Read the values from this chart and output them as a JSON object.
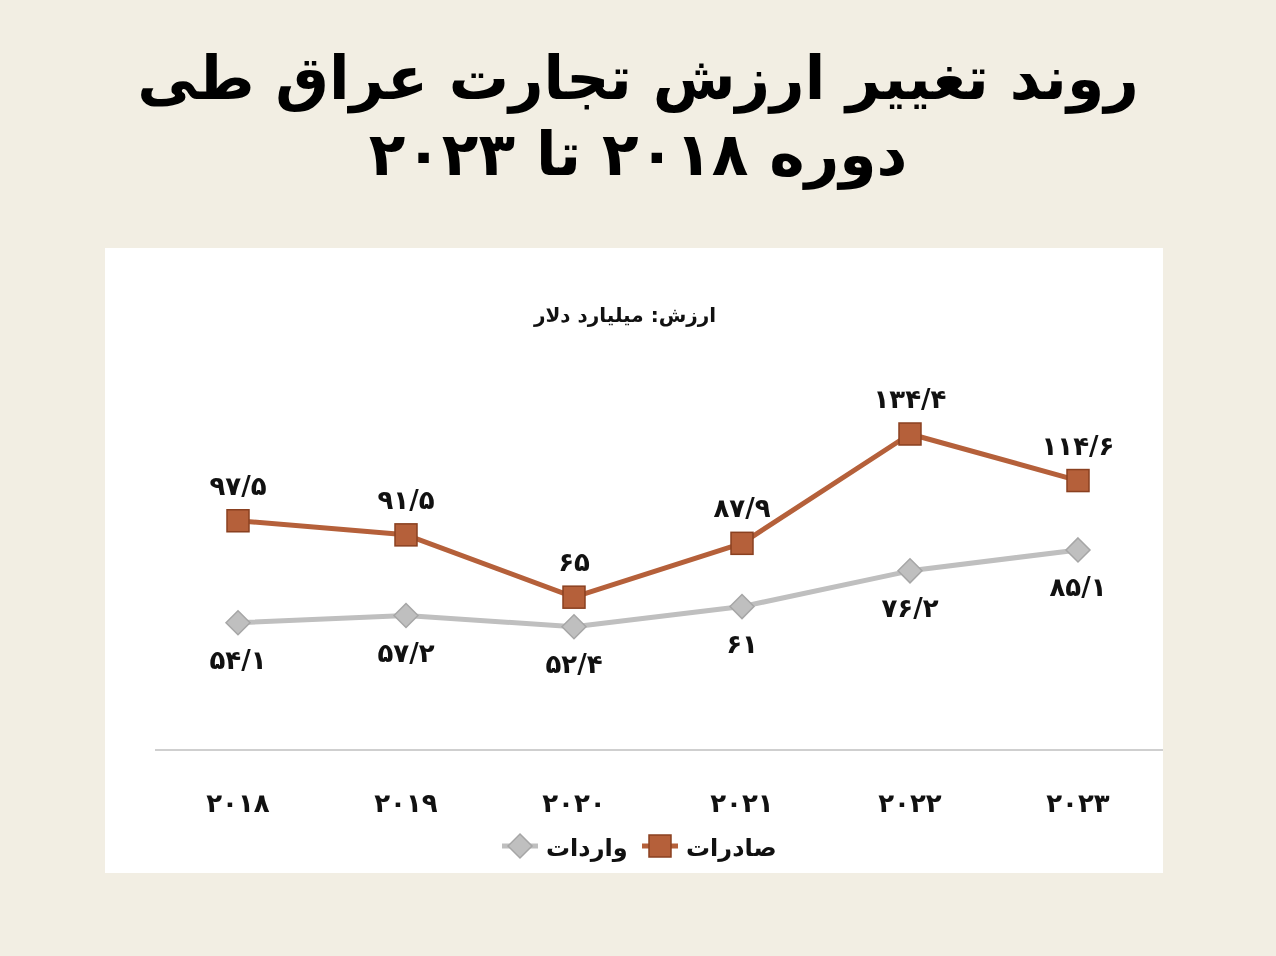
{
  "chart_data": {
    "type": "line",
    "title": "روند تغییر ارزش تجارت عراق طی دوره ۲۰۱۸ تا ۲۰۲۳",
    "subtitle": "ارزش: میلیارد دلار",
    "categories": [
      "۲۰۱۸",
      "۲۰۱۹",
      "۲۰۲۰",
      "۲۰۲۱",
      "۲۰۲۲",
      "۲۰۲۳"
    ],
    "legend": "bottom",
    "series": [
      {
        "name": "صادرات",
        "color": "#b5603a",
        "marker": "square",
        "values": [
          97.5,
          91.5,
          65,
          87.9,
          134.4,
          114.6
        ],
        "value_labels": [
          "۹۷/۵",
          "۹۱/۵",
          "۶۵",
          "۸۷/۹",
          "۱۳۴/۴",
          "۱۱۴/۶"
        ]
      },
      {
        "name": "واردات",
        "color": "#bfbfbf",
        "marker": "diamond",
        "values": [
          54.1,
          57.2,
          52.4,
          61,
          76.2,
          85.1
        ],
        "value_labels": [
          "۵۴/۱",
          "۵۷/۲",
          "۵۲/۴",
          "۶۱",
          "۷۶/۲",
          "۸۵/۱"
        ]
      }
    ]
  }
}
